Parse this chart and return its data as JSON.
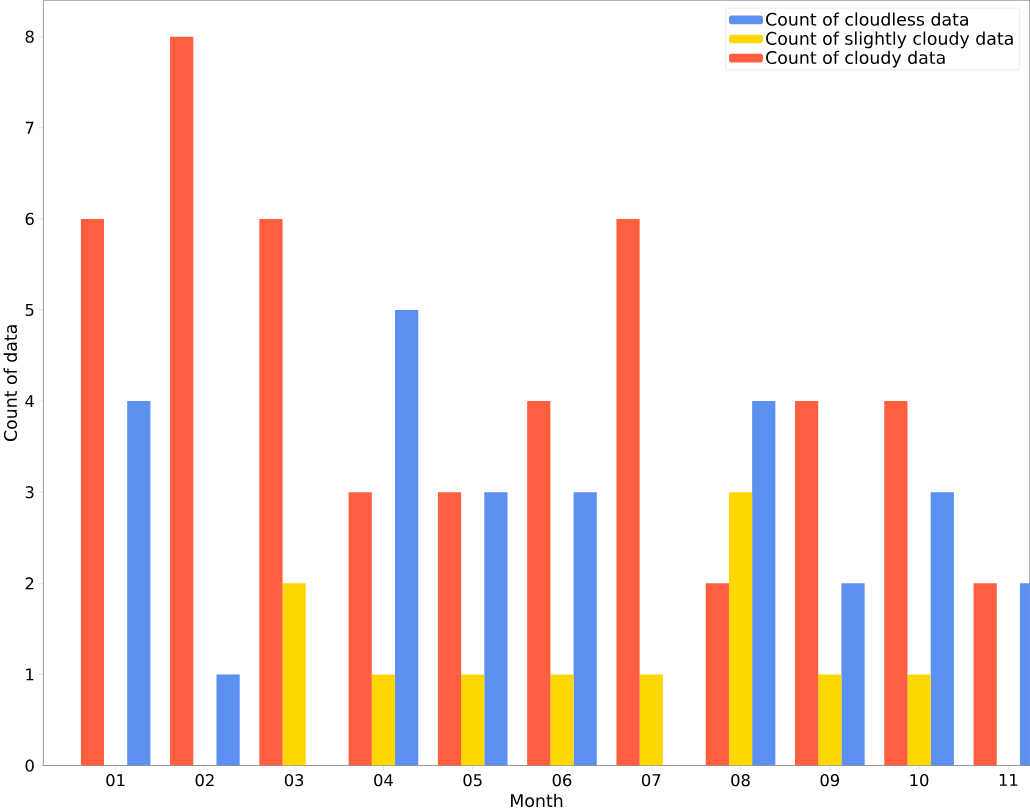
{
  "chart_data": {
    "type": "bar",
    "xlabel": "Month",
    "ylabel": "Count of data",
    "categories": [
      "01",
      "02",
      "03",
      "04",
      "05",
      "06",
      "07",
      "08",
      "09",
      "10",
      "11"
    ],
    "series": [
      {
        "name": "Count of cloudless data",
        "color": "#5b8ff0",
        "values": [
          4,
          1,
          null,
          5,
          3,
          3,
          null,
          4,
          2,
          3,
          2
        ]
      },
      {
        "name": "Count of slightly cloudy data",
        "color": "#ffd700",
        "values": [
          null,
          null,
          2,
          1,
          1,
          1,
          1,
          3,
          1,
          1,
          null
        ]
      },
      {
        "name": "Count of cloudy data",
        "color": "#ff5f3f",
        "values": [
          6,
          8,
          6,
          3,
          3,
          4,
          6,
          2,
          4,
          4,
          2
        ]
      }
    ],
    "ylim": [
      0,
      8.4
    ],
    "yticks": [
      0,
      1,
      2,
      3,
      4,
      5,
      6,
      7,
      8
    ],
    "legend": "top right",
    "grid": false
  }
}
